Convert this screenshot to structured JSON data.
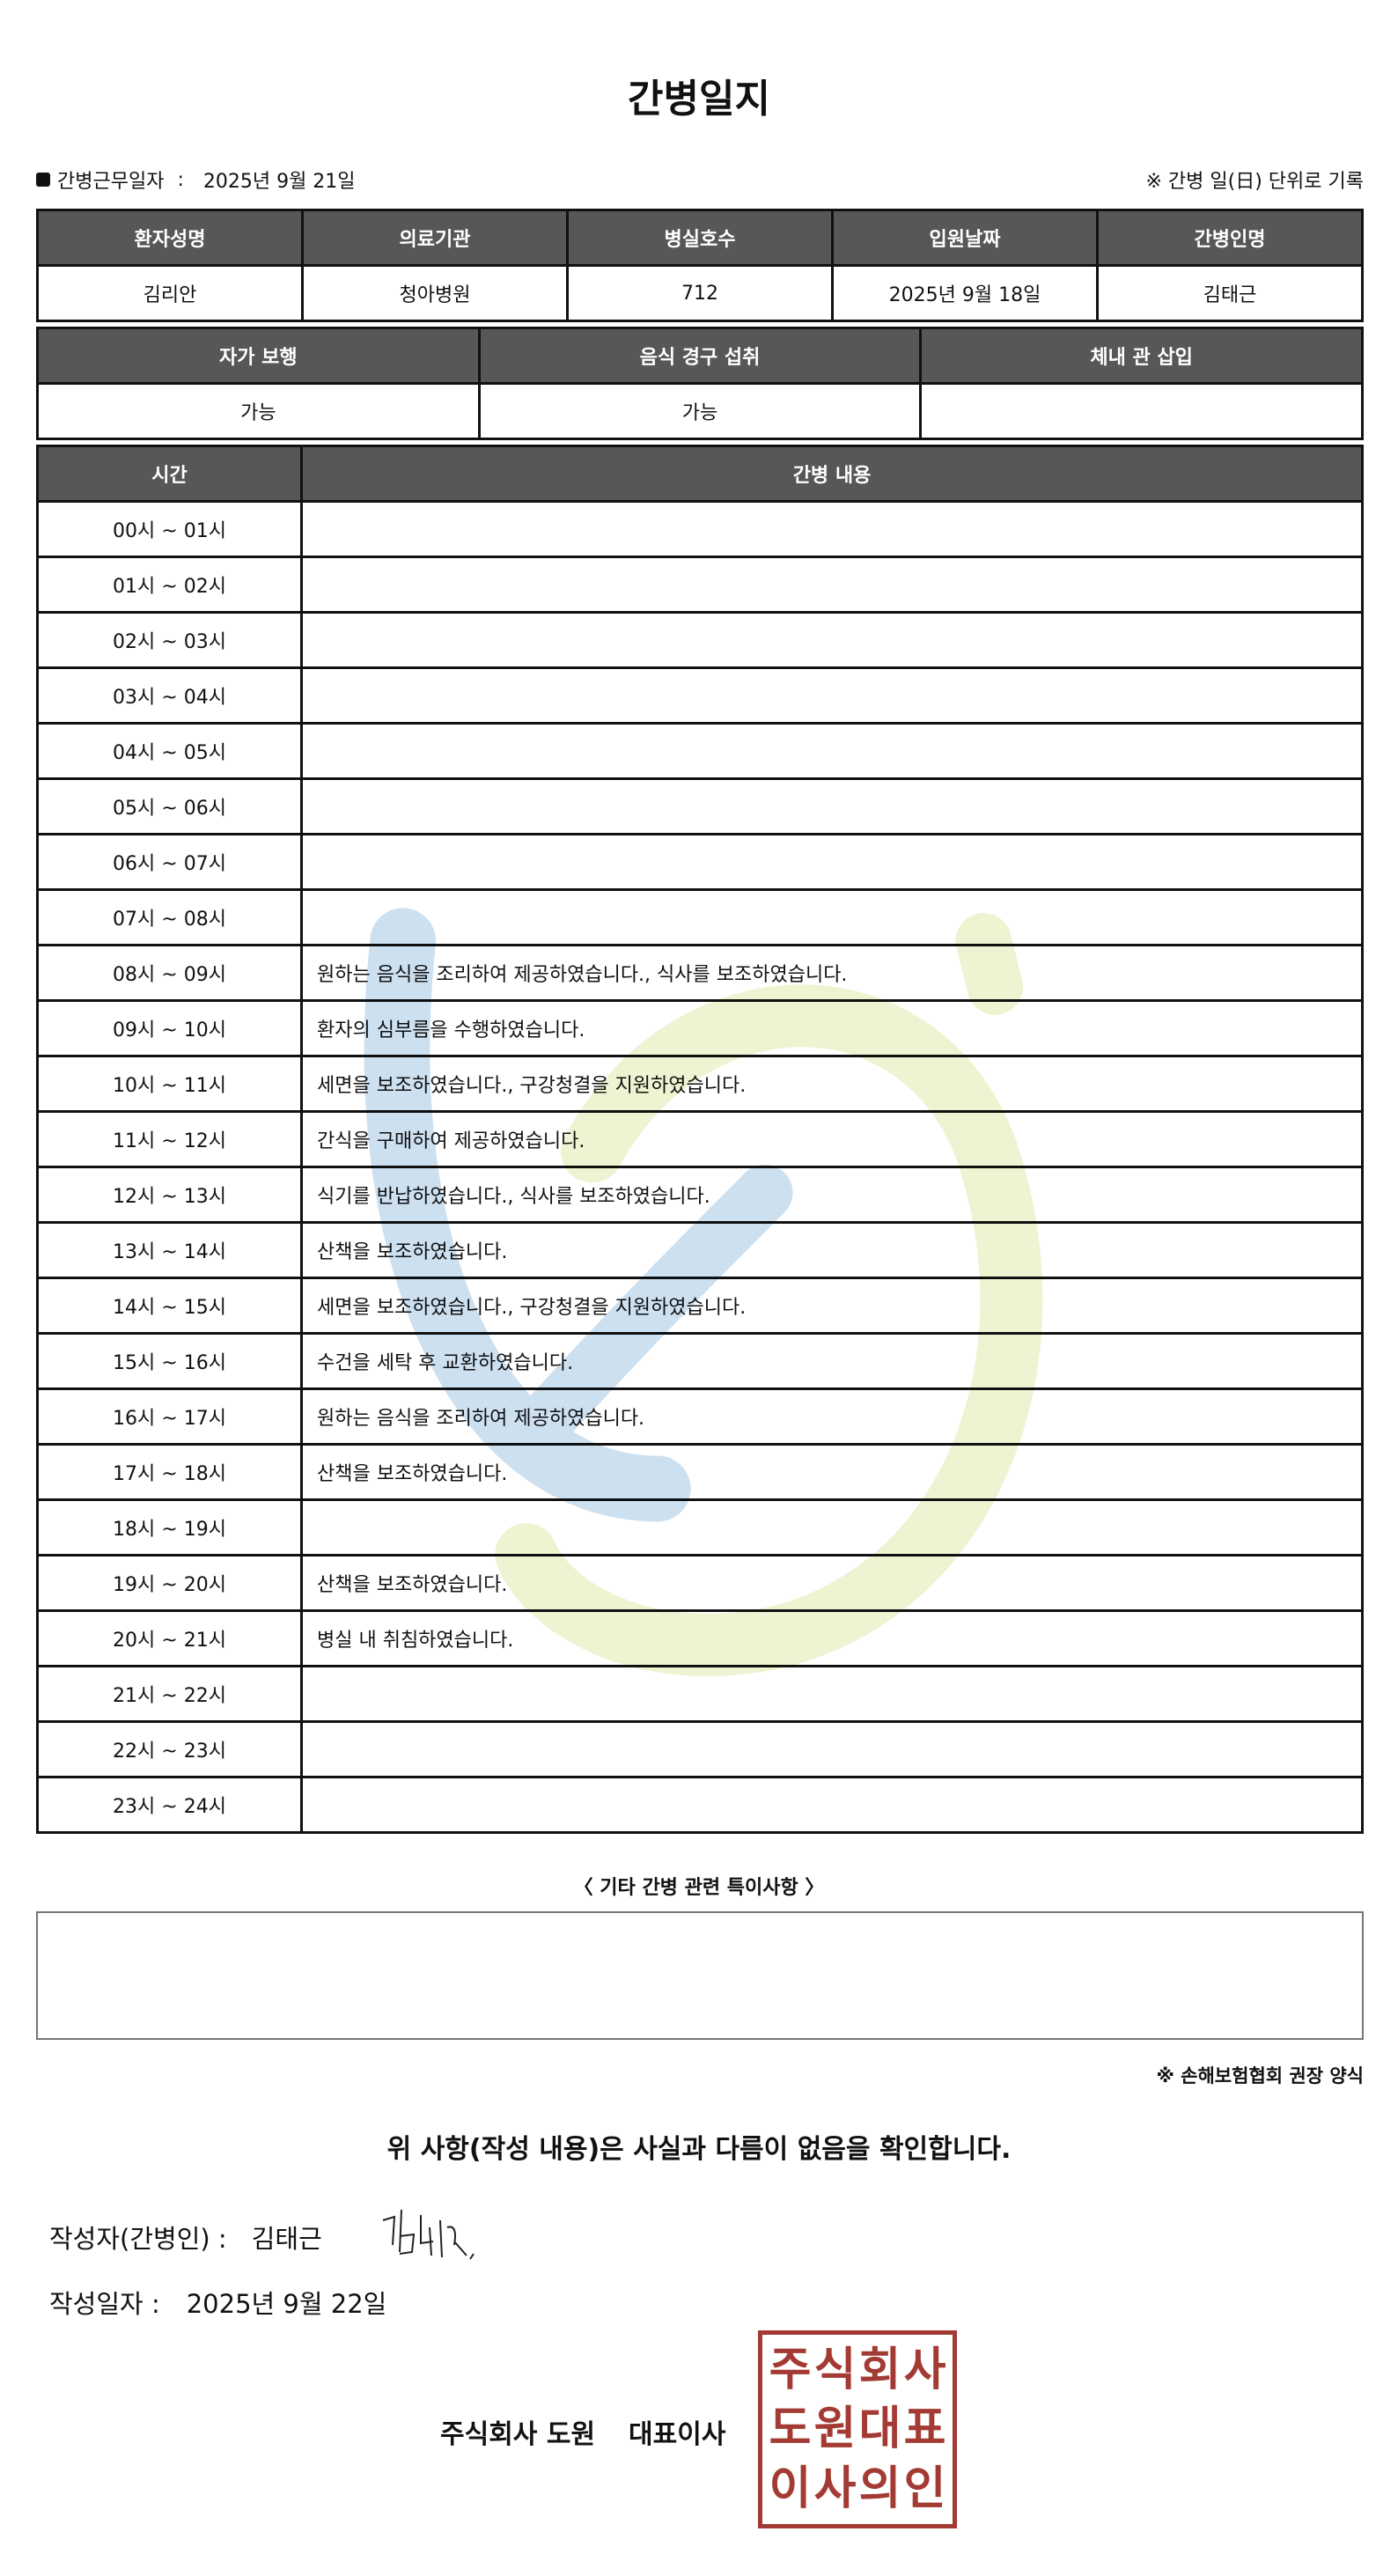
{
  "title": "간병일지",
  "work_date_label": "간병근무일자",
  "work_date": "2025년 9월 21일",
  "unit_note": "※ 간병 일(日) 단위로 기록",
  "patient_table": {
    "headers": [
      "환자성명",
      "의료기관",
      "병실호수",
      "입원날짜",
      "간병인명"
    ],
    "values": [
      "김리안",
      "청아병원",
      "712",
      "2025년 9월 18일",
      "김태근"
    ]
  },
  "status_table": {
    "headers": [
      "자가 보행",
      "음식 경구 섭취",
      "체내 관 삽입"
    ],
    "values": [
      "가능",
      "가능",
      ""
    ]
  },
  "log_table": {
    "headers": [
      "시간",
      "간병 내용"
    ],
    "rows": [
      {
        "time": "00시 ~ 01시",
        "content": ""
      },
      {
        "time": "01시 ~ 02시",
        "content": ""
      },
      {
        "time": "02시 ~ 03시",
        "content": ""
      },
      {
        "time": "03시 ~ 04시",
        "content": ""
      },
      {
        "time": "04시 ~ 05시",
        "content": ""
      },
      {
        "time": "05시 ~ 06시",
        "content": ""
      },
      {
        "time": "06시 ~ 07시",
        "content": ""
      },
      {
        "time": "07시 ~ 08시",
        "content": ""
      },
      {
        "time": "08시 ~ 09시",
        "content": "원하는 음식을 조리하여 제공하였습니다., 식사를 보조하였습니다."
      },
      {
        "time": "09시 ~ 10시",
        "content": "환자의 심부름을 수행하였습니다."
      },
      {
        "time": "10시 ~ 11시",
        "content": "세면을 보조하였습니다., 구강청결을 지원하였습니다."
      },
      {
        "time": "11시 ~ 12시",
        "content": "간식을 구매하여 제공하였습니다."
      },
      {
        "time": "12시 ~ 13시",
        "content": "식기를 반납하였습니다., 식사를 보조하였습니다."
      },
      {
        "time": "13시 ~ 14시",
        "content": "산책을 보조하였습니다."
      },
      {
        "time": "14시 ~ 15시",
        "content": "세면을 보조하였습니다., 구강청결을 지원하였습니다."
      },
      {
        "time": "15시 ~ 16시",
        "content": "수건을 세탁 후 교환하였습니다."
      },
      {
        "time": "16시 ~ 17시",
        "content": "원하는 음식을 조리하여 제공하였습니다."
      },
      {
        "time": "17시 ~ 18시",
        "content": "산책을 보조하였습니다."
      },
      {
        "time": "18시 ~ 19시",
        "content": ""
      },
      {
        "time": "19시 ~ 20시",
        "content": "산책을 보조하였습니다."
      },
      {
        "time": "20시 ~ 21시",
        "content": "병실 내 취침하였습니다."
      },
      {
        "time": "21시 ~ 22시",
        "content": ""
      },
      {
        "time": "22시 ~ 23시",
        "content": ""
      },
      {
        "time": "23시 ~ 24시",
        "content": ""
      }
    ]
  },
  "remarks_title": "〈 기타 간병 관련 특이사항 〉",
  "remarks": "",
  "form_note": "※ 손해보험협회 권장 양식",
  "confirm_text": "위 사항(작성 내용)은 사실과 다름이 없음을 확인합니다.",
  "writer_label": "작성자(간병인) :",
  "writer_name": "김태근",
  "signature": "김태근",
  "written_date_label": "작성일자 :",
  "written_date": "2025년 9월 22일",
  "company": "주식회사 도원",
  "ceo_label": "대표이사",
  "seal_text": "주식회사도원대표이사의인",
  "colors": {
    "header_bg": "#575757",
    "seal": "#a33a33",
    "watermark_blue": "#cde0f0",
    "watermark_green": "#eef3d2"
  }
}
